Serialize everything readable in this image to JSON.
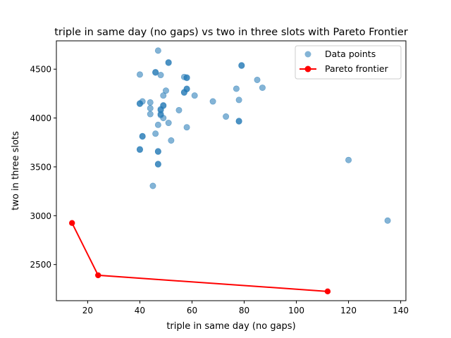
{
  "chart_data": {
    "type": "scatter",
    "title": "triple in same day (no gaps) vs two in three slots with Pareto Frontier",
    "xlabel": "triple in same day (no gaps)",
    "ylabel": "two in three slots",
    "xlim": [
      8,
      142
    ],
    "ylim": [
      2130,
      4790
    ],
    "xticks": [
      20,
      40,
      60,
      80,
      100,
      120,
      140
    ],
    "yticks": [
      2500,
      3000,
      3500,
      4000,
      4500
    ],
    "grid": false,
    "legend_position": "top-right",
    "colors": {
      "points": "#1f77b4",
      "frontier": "#ff0000"
    },
    "series": [
      {
        "name": "Data points",
        "kind": "scatter",
        "points": [
          [
            47,
            4690
          ],
          [
            40,
            4445
          ],
          [
            46,
            4470
          ],
          [
            46,
            4465
          ],
          [
            51,
            4570
          ],
          [
            51,
            4565
          ],
          [
            48,
            4440
          ],
          [
            57,
            4420
          ],
          [
            58,
            4415
          ],
          [
            58,
            4410
          ],
          [
            79,
            4540
          ],
          [
            79,
            4535
          ],
          [
            85,
            4390
          ],
          [
            87,
            4310
          ],
          [
            77,
            4300
          ],
          [
            58,
            4300
          ],
          [
            58,
            4295
          ],
          [
            57,
            4265
          ],
          [
            57,
            4260
          ],
          [
            61,
            4230
          ],
          [
            50,
            4280
          ],
          [
            49,
            4230
          ],
          [
            41,
            4170
          ],
          [
            44,
            4160
          ],
          [
            40,
            4150
          ],
          [
            40,
            4145
          ],
          [
            49,
            4130
          ],
          [
            49,
            4125
          ],
          [
            44,
            4100
          ],
          [
            48,
            4090
          ],
          [
            48,
            4080
          ],
          [
            55,
            4080
          ],
          [
            68,
            4170
          ],
          [
            78,
            4185
          ],
          [
            44,
            4040
          ],
          [
            48,
            4040
          ],
          [
            48,
            4030
          ],
          [
            49,
            4000
          ],
          [
            73,
            4015
          ],
          [
            78,
            3970
          ],
          [
            78,
            3965
          ],
          [
            51,
            3950
          ],
          [
            47,
            3930
          ],
          [
            58,
            3905
          ],
          [
            46,
            3840
          ],
          [
            41,
            3815
          ],
          [
            41,
            3810
          ],
          [
            52,
            3770
          ],
          [
            40,
            3680
          ],
          [
            40,
            3675
          ],
          [
            47,
            3660
          ],
          [
            47,
            3655
          ],
          [
            47,
            3530
          ],
          [
            47,
            3525
          ],
          [
            45,
            3305
          ],
          [
            120,
            3570
          ],
          [
            135,
            2950
          ]
        ]
      },
      {
        "name": "Pareto frontier",
        "kind": "line",
        "points": [
          [
            14,
            2925
          ],
          [
            24,
            2390
          ],
          [
            112,
            2225
          ]
        ]
      }
    ]
  }
}
